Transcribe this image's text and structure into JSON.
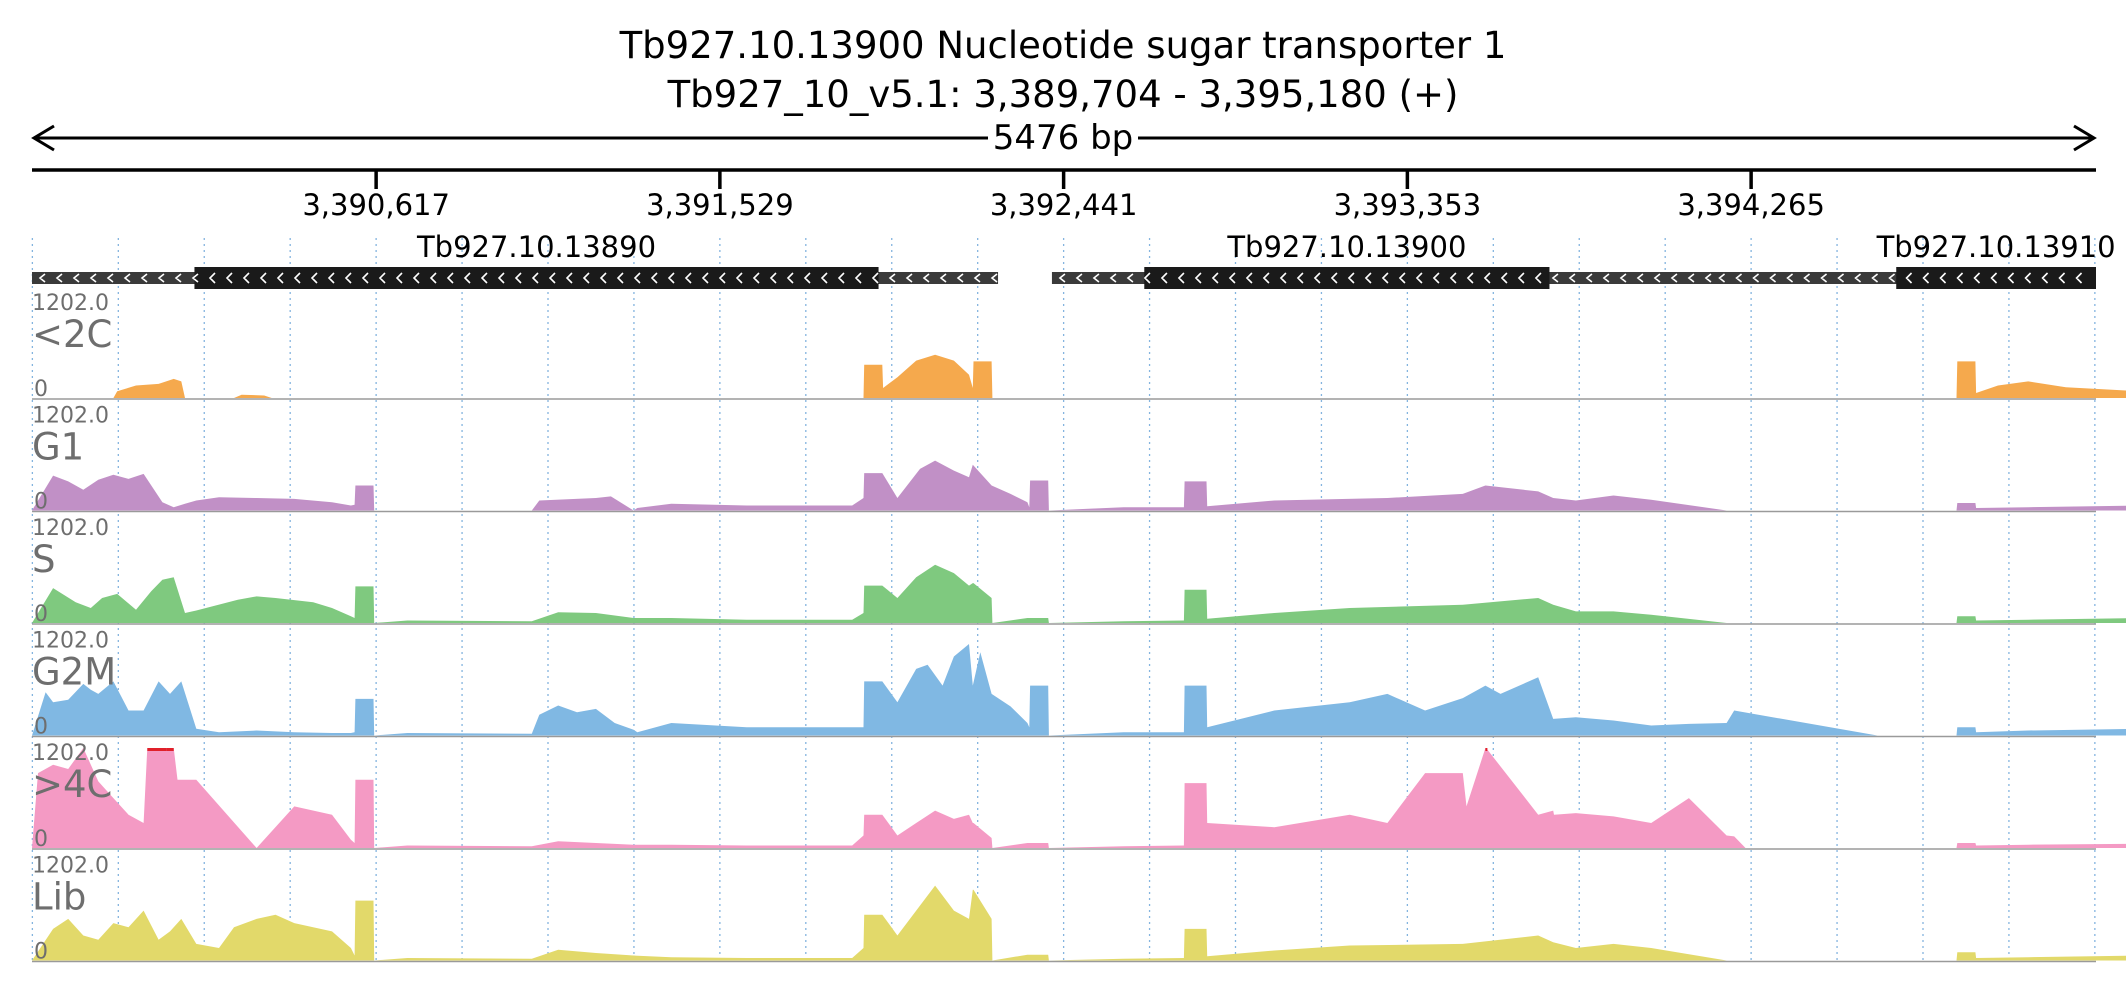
{
  "title": {
    "gene": "Tb927.10.13900  Nucleotide sugar transporter 1",
    "locus": "Tb927_10_v5.1: 3,389,704 - 3,395,180 (+)",
    "span": "5476 bp"
  },
  "colors": {
    "ruler": "#000000",
    "gridline": "#5b9bd5",
    "utr": "#3a3a3a",
    "cds": "#1a1a1a",
    "clip_marker": "#e0202a"
  },
  "chart_data": {
    "type": "area",
    "region": {
      "chrom": "Tb927_10_v5.1",
      "start": 3389704,
      "end": 3395180,
      "strand": "+"
    },
    "xlim": [
      3389704,
      3395180
    ],
    "ticks": [
      {
        "pos": 3390617,
        "label": "3,390,617"
      },
      {
        "pos": 3391529,
        "label": "3,391,529"
      },
      {
        "pos": 3392441,
        "label": "3,392,441"
      },
      {
        "pos": 3393353,
        "label": "3,393,353"
      },
      {
        "pos": 3394265,
        "label": "3,394,265"
      }
    ],
    "genes": [
      {
        "id": "Tb927.10.13890",
        "start": 3389704,
        "end": 3392267,
        "cds_start": 3390135,
        "cds_end": 3391950,
        "strand": "-"
      },
      {
        "id": "Tb927.10.13900",
        "start": 3392410,
        "end": 3394925,
        "cds_start": 3392655,
        "cds_end": 3393730,
        "strand": "-"
      },
      {
        "id": "Tb927.10.13910",
        "start": 3394160,
        "end": 3395180,
        "cds_start": 3394650,
        "cds_end": 3395180,
        "strand": "-"
      }
    ],
    "tracks": [
      {
        "name": "<2C",
        "color": "#f5a94d",
        "ylim": [
          0,
          1202.0
        ],
        "ymax_label": "1202.0",
        "ymin_label": "0",
        "x": [
          3389704,
          3389920,
          3389930,
          3389980,
          3390040,
          3390080,
          3390100,
          3390110,
          3390240,
          3390260,
          3390320,
          3390340,
          3391910,
          3391912,
          3391960,
          3391962,
          3392000,
          3392050,
          3392100,
          3392150,
          3392190,
          3392200,
          3392202,
          3392250,
          3392252,
          3394810,
          3394812,
          3394860,
          3394862,
          3394920,
          3395000,
          3395100,
          3395300,
          3395400,
          3395500,
          3395540,
          3395560,
          3395562,
          3395620,
          3395622,
          3395660,
          3395700
        ],
        "y": [
          0,
          0,
          80,
          150,
          170,
          230,
          200,
          0,
          0,
          40,
          30,
          0,
          0,
          400,
          400,
          120,
          250,
          450,
          520,
          450,
          280,
          120,
          440,
          440,
          0,
          0,
          440,
          440,
          60,
          150,
          200,
          130,
          80,
          150,
          300,
          180,
          60,
          600,
          600,
          0,
          20,
          0
        ]
      },
      {
        "name": "G1",
        "color": "#c190c6",
        "ylim": [
          0,
          1202.0
        ],
        "ymax_label": "1202.0",
        "ymin_label": "0",
        "x": [
          3389704,
          3389760,
          3389800,
          3389840,
          3389880,
          3389920,
          3389960,
          3390000,
          3390050,
          3390080,
          3390110,
          3390140,
          3390200,
          3390300,
          3390400,
          3390500,
          3390550,
          3390560,
          3390562,
          3390610,
          3390612,
          3391030,
          3391050,
          3391200,
          3391240,
          3391300,
          3391310,
          3391400,
          3391600,
          3391880,
          3391910,
          3391912,
          3391960,
          3392000,
          3392060,
          3392100,
          3392150,
          3392190,
          3392200,
          3392250,
          3392300,
          3392345,
          3392350,
          3392352,
          3392400,
          3392402,
          3392600,
          3392760,
          3392762,
          3392820,
          3392822,
          3393000,
          3393300,
          3393500,
          3393560,
          3393700,
          3393740,
          3393800,
          3393900,
          3394000,
          3394200,
          3394600,
          3394700,
          3394810,
          3394812,
          3394860,
          3394862,
          3395000,
          3395300,
          3395500,
          3395620,
          3395622,
          3395680
        ],
        "y": [
          0,
          420,
          350,
          250,
          370,
          430,
          380,
          440,
          100,
          40,
          80,
          120,
          160,
          150,
          140,
          100,
          60,
          70,
          300,
          300,
          0,
          0,
          120,
          150,
          170,
          0,
          30,
          80,
          60,
          60,
          150,
          450,
          450,
          150,
          500,
          600,
          480,
          400,
          550,
          300,
          200,
          100,
          40,
          360,
          360,
          0,
          40,
          40,
          350,
          350,
          50,
          120,
          150,
          200,
          300,
          230,
          150,
          120,
          180,
          130,
          0,
          0,
          0,
          0,
          90,
          90,
          30,
          40,
          60,
          70,
          150,
          150,
          0
        ]
      },
      {
        "name": "S",
        "color": "#7fc97f",
        "ylim": [
          0,
          1202.0
        ],
        "ymax_label": "1202.0",
        "ymin_label": "0",
        "x": [
          3389704,
          3389760,
          3389820,
          3389860,
          3389890,
          3389930,
          3389980,
          3390020,
          3390050,
          3390080,
          3390110,
          3390140,
          3390250,
          3390300,
          3390350,
          3390450,
          3390500,
          3390550,
          3390560,
          3390562,
          3390610,
          3390612,
          3390700,
          3391030,
          3391100,
          3391200,
          3391300,
          3391400,
          3391600,
          3391880,
          3391910,
          3391912,
          3391960,
          3392000,
          3392050,
          3392100,
          3392150,
          3392190,
          3392200,
          3392202,
          3392250,
          3392252,
          3392345,
          3392400,
          3392402,
          3392600,
          3392760,
          3392762,
          3392820,
          3392822,
          3393000,
          3393200,
          3393500,
          3393700,
          3393740,
          3393800,
          3393900,
          3394000,
          3394200,
          3394600,
          3394810,
          3394812,
          3394860,
          3394862,
          3395000,
          3395300,
          3395500,
          3395620,
          3395622,
          3395680
        ],
        "y": [
          0,
          420,
          250,
          180,
          300,
          350,
          160,
          380,
          520,
          550,
          120,
          150,
          280,
          320,
          300,
          250,
          180,
          80,
          60,
          440,
          440,
          0,
          30,
          20,
          130,
          120,
          60,
          60,
          40,
          40,
          120,
          450,
          450,
          300,
          550,
          700,
          600,
          450,
          480,
          480,
          300,
          0,
          60,
          60,
          0,
          20,
          30,
          400,
          400,
          50,
          120,
          180,
          220,
          300,
          220,
          140,
          140,
          100,
          0,
          0,
          0,
          80,
          80,
          30,
          40,
          60,
          70,
          150,
          150,
          0
        ]
      },
      {
        "name": "G2M",
        "color": "#80b8e3",
        "ylim": [
          0,
          1202.0
        ],
        "ymax_label": "1202.0",
        "ymin_label": "0",
        "x": [
          3389704,
          3389740,
          3389760,
          3389800,
          3389840,
          3389860,
          3389880,
          3389920,
          3389960,
          3390000,
          3390040,
          3390070,
          3390100,
          3390140,
          3390200,
          3390300,
          3390400,
          3390500,
          3390550,
          3390560,
          3390562,
          3390610,
          3390612,
          3390700,
          3391030,
          3391050,
          3391100,
          3391150,
          3391200,
          3391250,
          3391300,
          3391310,
          3391400,
          3391600,
          3391880,
          3391910,
          3391912,
          3391960,
          3392000,
          3392050,
          3392080,
          3392120,
          3392150,
          3392190,
          3392200,
          3392220,
          3392250,
          3392300,
          3392345,
          3392350,
          3392352,
          3392400,
          3392402,
          3392600,
          3392760,
          3392762,
          3392820,
          3392822,
          3393000,
          3393200,
          3393300,
          3393400,
          3393500,
          3393560,
          3393600,
          3393700,
          3393740,
          3393800,
          3393900,
          3394000,
          3394100,
          3394200,
          3394220,
          3394600,
          3394700,
          3394810,
          3394812,
          3394860,
          3394862,
          3395000,
          3395300,
          3395500,
          3395620,
          3395622,
          3395680
        ],
        "y": [
          0,
          520,
          400,
          430,
          620,
          550,
          500,
          650,
          300,
          300,
          650,
          500,
          650,
          80,
          40,
          60,
          40,
          30,
          30,
          40,
          440,
          440,
          0,
          30,
          20,
          250,
          360,
          280,
          320,
          150,
          70,
          40,
          150,
          100,
          100,
          100,
          650,
          650,
          400,
          800,
          850,
          600,
          950,
          1100,
          600,
          1000,
          500,
          350,
          150,
          100,
          600,
          600,
          0,
          40,
          40,
          600,
          600,
          100,
          300,
          400,
          500,
          300,
          450,
          600,
          500,
          700,
          200,
          220,
          180,
          120,
          140,
          150,
          300,
          0,
          0,
          0,
          100,
          100,
          40,
          60,
          80,
          60,
          200,
          200,
          0
        ]
      },
      {
        "name": ">4C",
        "color": "#f49ac4",
        "ylim": [
          0,
          1202.0
        ],
        "ymax_label": "1202.0",
        "ymin_label": "0",
        "x": [
          3389704,
          3389720,
          3389760,
          3389800,
          3389840,
          3389880,
          3389920,
          3389960,
          3390000,
          3390010,
          3390060,
          3390080,
          3390090,
          3390140,
          3390300,
          3390400,
          3390500,
          3390550,
          3390560,
          3390562,
          3390610,
          3390612,
          3390700,
          3391030,
          3391100,
          3391200,
          3391300,
          3391400,
          3391600,
          3391880,
          3391910,
          3391912,
          3391960,
          3392000,
          3392050,
          3392100,
          3392150,
          3392190,
          3392200,
          3392202,
          3392250,
          3392252,
          3392345,
          3392400,
          3392402,
          3392600,
          3392760,
          3392762,
          3392820,
          3392822,
          3393000,
          3393200,
          3393300,
          3393400,
          3393500,
          3393510,
          3393560,
          3393562,
          3393700,
          3393740,
          3393742,
          3393800,
          3393900,
          3394000,
          3394100,
          3394200,
          3394220,
          3394250,
          3394252,
          3394600,
          3394810,
          3394812,
          3394860,
          3394862,
          3395000,
          3395300,
          3395500,
          3395620,
          3395622,
          3395680
        ],
        "y": [
          0,
          900,
          1000,
          950,
          1202,
          800,
          600,
          400,
          300,
          1202,
          1202,
          1202,
          820,
          820,
          0,
          500,
          400,
          100,
          60,
          820,
          820,
          0,
          30,
          20,
          80,
          60,
          40,
          40,
          30,
          30,
          150,
          400,
          400,
          150,
          300,
          450,
          350,
          400,
          300,
          300,
          120,
          0,
          60,
          60,
          0,
          20,
          30,
          780,
          780,
          300,
          250,
          400,
          300,
          900,
          900,
          500,
          1202,
          1202,
          400,
          450,
          400,
          420,
          380,
          300,
          600,
          150,
          140,
          0,
          0,
          0,
          0,
          60,
          60,
          30,
          40,
          50,
          60,
          100,
          100,
          0
        ]
      },
      {
        "name": "Lib",
        "color": "#e2d96a",
        "ylim": [
          0,
          1202.0
        ],
        "ymax_label": "1202.0",
        "ymin_label": "0",
        "x": [
          3389704,
          3389760,
          3389800,
          3389840,
          3389880,
          3389920,
          3389960,
          3390000,
          3390040,
          3390070,
          3390100,
          3390140,
          3390200,
          3390240,
          3390300,
          3390350,
          3390400,
          3390500,
          3390550,
          3390560,
          3390562,
          3390610,
          3390612,
          3390700,
          3391030,
          3391100,
          3391200,
          3391300,
          3391400,
          3391600,
          3391880,
          3391910,
          3391912,
          3391960,
          3392000,
          3392050,
          3392100,
          3392150,
          3392190,
          3392200,
          3392202,
          3392250,
          3392252,
          3392345,
          3392400,
          3392402,
          3392600,
          3392760,
          3392762,
          3392820,
          3392822,
          3393000,
          3393200,
          3393500,
          3393700,
          3393740,
          3393800,
          3393900,
          3394000,
          3394200,
          3394600,
          3394810,
          3394812,
          3394860,
          3394862,
          3395000,
          3395300,
          3395500,
          3395620,
          3395622,
          3395680
        ],
        "y": [
          0,
          380,
          500,
          300,
          250,
          450,
          400,
          600,
          250,
          350,
          500,
          200,
          150,
          400,
          500,
          550,
          450,
          350,
          150,
          60,
          720,
          720,
          0,
          30,
          20,
          130,
          90,
          60,
          40,
          30,
          30,
          150,
          550,
          550,
          300,
          600,
          900,
          600,
          500,
          850,
          850,
          500,
          0,
          70,
          70,
          0,
          20,
          30,
          380,
          380,
          50,
          120,
          180,
          200,
          300,
          220,
          150,
          200,
          150,
          0,
          0,
          0,
          100,
          100,
          30,
          40,
          60,
          70,
          150,
          150,
          0
        ]
      }
    ]
  }
}
